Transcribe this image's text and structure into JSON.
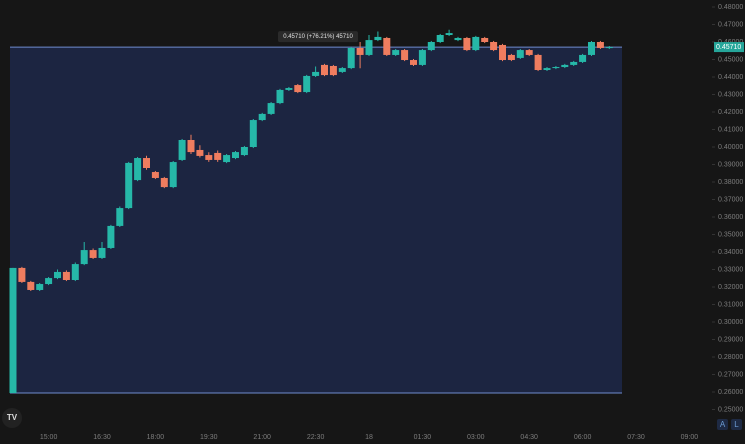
{
  "chart_data": {
    "type": "candlestick",
    "categories": [
      null,
      null,
      null,
      null,
      "15:00",
      null,
      null,
      null,
      null,
      null,
      "16:30",
      null,
      null,
      null,
      null,
      null,
      "18:00",
      null,
      null,
      null,
      null,
      null,
      "19:30",
      null,
      null,
      null,
      null,
      null,
      "21:00",
      null,
      null,
      null,
      null,
      null,
      "22:30",
      null,
      null,
      null,
      null,
      null,
      "18",
      null,
      null,
      null,
      null,
      null,
      "01:30",
      null,
      null,
      null,
      null,
      null,
      "03:00",
      null,
      null,
      null,
      null,
      null,
      "04:30",
      null,
      null,
      null,
      null,
      null,
      "06:00",
      null,
      null,
      null,
      null,
      null,
      "07:30",
      null,
      null,
      null,
      null,
      null,
      "09:00"
    ],
    "open": [
      0.2594,
      0.3309,
      0.3229,
      0.3183,
      0.3217,
      0.3251,
      0.3286,
      0.324,
      0.3331,
      0.3411,
      0.3366,
      0.3423,
      0.3549,
      0.3651,
      0.3811,
      0.3937,
      0.3857,
      0.3823,
      0.3771,
      0.3926,
      0.404,
      0.3983,
      0.3954,
      0.3966,
      0.3914,
      0.3937,
      0.3954,
      0.4,
      0.4154,
      0.4189,
      0.4251,
      0.4326,
      0.4354,
      0.4314,
      0.4406,
      0.4469,
      0.4463,
      0.4429,
      0.4451,
      0.4566,
      0.4526,
      0.4611,
      0.4623,
      0.4526,
      0.4554,
      0.4497,
      0.4469,
      0.4554,
      0.46,
      0.464,
      0.4611,
      0.4623,
      0.4554,
      0.4623,
      0.46,
      0.4583,
      0.4526,
      0.4509,
      0.4554,
      0.4526,
      0.444,
      0.4451,
      0.4457,
      0.4469,
      0.4486,
      0.4526,
      0.46,
      0.4566,
      null,
      null,
      null,
      null,
      null,
      null,
      null,
      null,
      null
    ],
    "high": [
      0.3309,
      0.3315,
      0.3235,
      0.3223,
      0.3257,
      0.33,
      0.3295,
      0.334,
      0.3457,
      0.342,
      0.3457,
      0.3555,
      0.366,
      0.3915,
      0.3943,
      0.395,
      0.3863,
      0.3829,
      0.392,
      0.4046,
      0.407,
      0.401,
      0.397,
      0.398,
      0.396,
      0.3977,
      0.4006,
      0.416,
      0.4195,
      0.4257,
      0.4332,
      0.4343,
      0.436,
      0.4412,
      0.446,
      0.4475,
      0.4469,
      0.4457,
      0.4572,
      0.46,
      0.464,
      0.466,
      0.4629,
      0.456,
      0.456,
      0.4503,
      0.456,
      0.4606,
      0.4646,
      0.467,
      0.4629,
      0.4629,
      0.4635,
      0.4629,
      0.4606,
      0.4589,
      0.4532,
      0.456,
      0.456,
      0.4532,
      0.4457,
      0.4463,
      0.4475,
      0.4492,
      0.4532,
      0.4606,
      0.4606,
      0.4577,
      null,
      null,
      null,
      null,
      null,
      null,
      null,
      null,
      null
    ],
    "low": [
      0.2594,
      0.3223,
      0.3177,
      0.3177,
      0.3211,
      0.3245,
      0.3234,
      0.3234,
      0.3325,
      0.336,
      0.336,
      0.3417,
      0.3543,
      0.3645,
      0.3805,
      0.387,
      0.3817,
      0.3765,
      0.3765,
      0.392,
      0.396,
      0.394,
      0.3915,
      0.3915,
      0.3908,
      0.3931,
      0.3948,
      0.3994,
      0.4148,
      0.4183,
      0.4245,
      0.432,
      0.4308,
      0.4308,
      0.44,
      0.4405,
      0.4405,
      0.4423,
      0.4445,
      0.445,
      0.452,
      0.4605,
      0.452,
      0.452,
      0.4491,
      0.4463,
      0.4463,
      0.4548,
      0.4594,
      0.4634,
      0.4605,
      0.4548,
      0.4548,
      0.4594,
      0.4548,
      0.4491,
      0.4491,
      0.4503,
      0.452,
      0.4434,
      0.4434,
      0.4445,
      0.4451,
      0.4463,
      0.448,
      0.452,
      0.456,
      0.456,
      null,
      null,
      null,
      null,
      null,
      null,
      null,
      null,
      null
    ],
    "close": [
      0.3309,
      0.3229,
      0.3183,
      0.3217,
      0.3251,
      0.3286,
      0.324,
      0.3331,
      0.3411,
      0.3366,
      0.3423,
      0.3549,
      0.3651,
      0.3909,
      0.3937,
      0.388,
      0.3823,
      0.3771,
      0.3914,
      0.404,
      0.3971,
      0.3949,
      0.3926,
      0.3926,
      0.3954,
      0.3971,
      0.4,
      0.4154,
      0.4189,
      0.4251,
      0.4326,
      0.4337,
      0.4314,
      0.4406,
      0.4429,
      0.4411,
      0.4411,
      0.4451,
      0.4566,
      0.4526,
      0.4611,
      0.4629,
      0.4526,
      0.4554,
      0.4497,
      0.4469,
      0.4554,
      0.46,
      0.464,
      0.4651,
      0.4623,
      0.4554,
      0.4629,
      0.46,
      0.4554,
      0.4497,
      0.4497,
      0.4554,
      0.4526,
      0.444,
      0.4451,
      0.4457,
      0.4469,
      0.4486,
      0.4526,
      0.46,
      0.4566,
      0.4571,
      null,
      null,
      null,
      null,
      null,
      null,
      null,
      null,
      null
    ],
    "up_color": "#26b8a8",
    "down_color": "#ef7d5f",
    "last_price": {
      "value": 0.4571,
      "label": "0.45710"
    },
    "annotation": "0.45710 (+76.21%) 45710",
    "ylim": [
      0.24,
      0.484
    ],
    "yticks": [
      {
        "value": 0.48,
        "label": "0.48000"
      },
      {
        "value": 0.47,
        "label": "0.47000"
      },
      {
        "value": 0.46,
        "label": "0.46000"
      },
      {
        "value": 0.45,
        "label": "0.45000"
      },
      {
        "value": 0.44,
        "label": "0.44000"
      },
      {
        "value": 0.43,
        "label": "0.43000"
      },
      {
        "value": 0.42,
        "label": "0.42000"
      },
      {
        "value": 0.41,
        "label": "0.41000"
      },
      {
        "value": 0.4,
        "label": "0.40000"
      },
      {
        "value": 0.39,
        "label": "0.39000"
      },
      {
        "value": 0.38,
        "label": "0.38000"
      },
      {
        "value": 0.37,
        "label": "0.37000"
      },
      {
        "value": 0.36,
        "label": "0.36000"
      },
      {
        "value": 0.35,
        "label": "0.35000"
      },
      {
        "value": 0.34,
        "label": "0.34000"
      },
      {
        "value": 0.33,
        "label": "0.33000"
      },
      {
        "value": 0.32,
        "label": "0.32000"
      },
      {
        "value": 0.31,
        "label": "0.31000"
      },
      {
        "value": 0.3,
        "label": "0.30000"
      },
      {
        "value": 0.29,
        "label": "0.29000"
      },
      {
        "value": 0.28,
        "label": "0.28000"
      },
      {
        "value": 0.27,
        "label": "0.27000"
      },
      {
        "value": 0.26,
        "label": "0.26000"
      },
      {
        "value": 0.25,
        "label": "0.25000"
      }
    ],
    "grid": false,
    "buttons": [
      "A",
      "L"
    ]
  }
}
